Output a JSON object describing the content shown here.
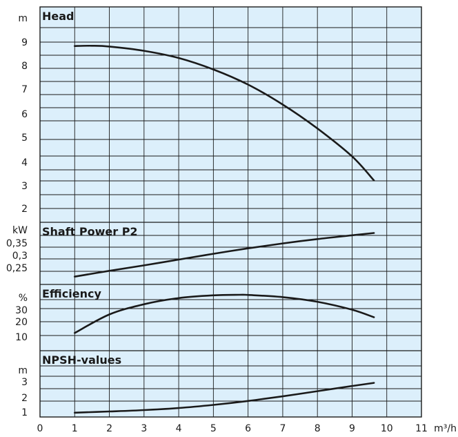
{
  "chart_data": [
    {
      "type": "line",
      "title": "Head",
      "unit": "m",
      "yticks": [
        "9",
        "8",
        "7",
        "6",
        "5",
        "4",
        "3",
        "2"
      ],
      "x": [
        1,
        1.5,
        2,
        3,
        4,
        5,
        6,
        7,
        8,
        9,
        9.63
      ],
      "y": [
        8.45,
        8.46,
        8.43,
        8.27,
        8.0,
        7.57,
        7.0,
        6.25,
        5.35,
        4.3,
        3.4
      ]
    },
    {
      "type": "line",
      "title": "Shaft Power P2",
      "unit": "kW",
      "yticks": [
        "0,35",
        "0,3",
        "0,25"
      ],
      "x": [
        1,
        2,
        3,
        4,
        5,
        6,
        7,
        8,
        9,
        9.63
      ],
      "y": [
        0.237,
        0.257,
        0.276,
        0.296,
        0.316,
        0.335,
        0.352,
        0.367,
        0.38,
        0.388
      ]
    },
    {
      "type": "line",
      "title": "Efficiency",
      "unit": "%",
      "yticks": [
        "30",
        "20",
        "10"
      ],
      "x": [
        1,
        2,
        3,
        4,
        5,
        5.75,
        6,
        7,
        8,
        9,
        9.63
      ],
      "y": [
        13,
        26.5,
        34,
        38.5,
        40.5,
        40.9,
        40.8,
        39.2,
        35.8,
        30,
        24.5
      ]
    },
    {
      "type": "line",
      "title": "NPSH-values",
      "unit": "m",
      "yticks": [
        "3",
        "2",
        "1"
      ],
      "x": [
        1,
        2,
        3,
        4,
        5,
        6,
        7,
        8,
        9,
        9.63
      ],
      "y": [
        1.05,
        1.12,
        1.2,
        1.32,
        1.5,
        1.73,
        2.0,
        2.3,
        2.6,
        2.78
      ]
    }
  ],
  "x_axis": {
    "ticks": [
      "0",
      "1",
      "2",
      "3",
      "4",
      "5",
      "6",
      "7",
      "8",
      "9",
      "10",
      "11"
    ],
    "unit": "m³/h",
    "range": [
      0,
      11
    ]
  }
}
